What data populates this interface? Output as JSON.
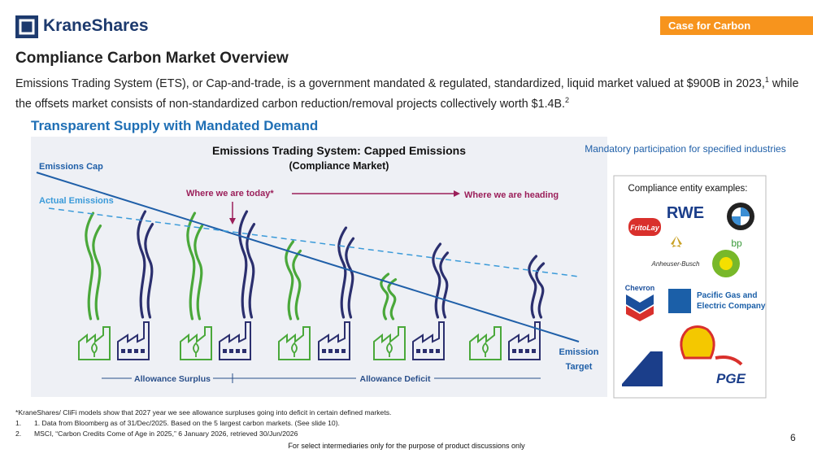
{
  "header": {
    "logo": "KraneShares",
    "tag": "Case for Carbon"
  },
  "title": "Compliance Carbon Market Overview",
  "body": {
    "text_1": "Emissions Trading System (ETS), or Cap-and-trade, is a government mandated & regulated, standardized, liquid market valued at $900B in 2023,",
    "sup_1": "1",
    "text_2": " while the offsets market consists of non-standardized carbon reduction/removal projects collectively worth $1.4B.",
    "sup_2": "2"
  },
  "section_heading": "Transparent Supply with Mandated Demand",
  "diagram": {
    "title": "Emissions Trading System: Capped Emissions",
    "subtitle": "(Compliance Market)",
    "cap_label": "Emissions Cap",
    "actual_label": "Actual Emissions",
    "today_label": "Where we are today*",
    "heading_label": "Where we are heading",
    "target_label": [
      "Emission",
      "Target"
    ],
    "surplus_label": "Allowance Surplus",
    "deficit_label": "Allowance Deficit"
  },
  "side_panel": {
    "heading": "Mandatory participation for specified industries",
    "subheading": "Compliance entity examples:",
    "logos": {
      "rwe": "RWE",
      "fritolay": "FritoLay",
      "anheuser": "Anheuser-Busch",
      "bp": "bp",
      "chevron": "Chevron",
      "pge_us": [
        "Pacific Gas and",
        "Electric Company"
      ],
      "pge_pl": "PGE"
    }
  },
  "footnotes": {
    "star": "*KraneShares/ CliFi models show that 2027 year we see allowance surpluses going into deficit in certain defined markets.",
    "items": [
      {
        "number": "1.",
        "text": "1. Data from Bloomberg as of 31/Dec/2025. Based on the 5 largest carbon markets. (See slide 10)."
      },
      {
        "number": "2.",
        "text": "MSCI, “Carbon Credits Come of Age in 2025,” 6 January 2026, retrieved 30/Jun/2026"
      }
    ]
  },
  "footer": "For select intermediaries only for the purpose of product discussions only",
  "page_number": "6"
}
